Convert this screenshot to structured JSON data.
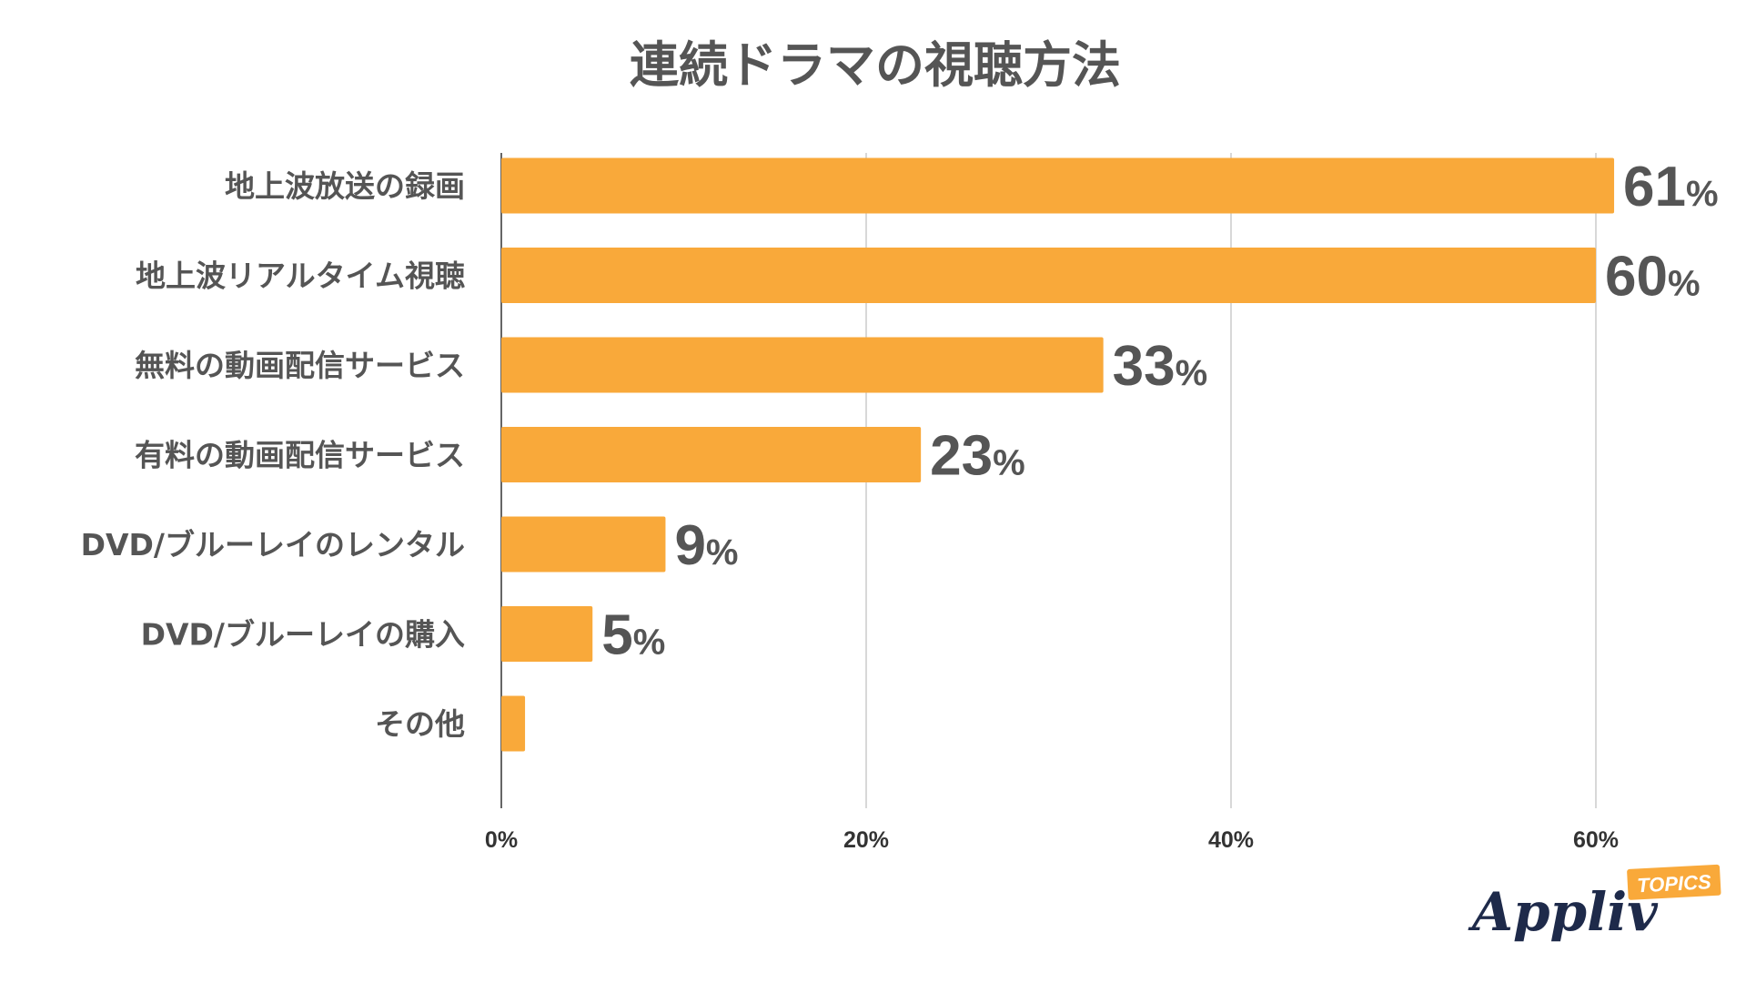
{
  "chart_data": {
    "type": "bar",
    "orientation": "horizontal",
    "title": "連続ドラマの視聴方法",
    "categories": [
      "地上波放送の録画",
      "地上波リアルタイム視聴",
      "無料の動画配信サービス",
      "有料の動画配信サービス",
      "DVD/ブルーレイのレンタル",
      "DVD/ブルーレイの購入",
      "その他"
    ],
    "values": [
      61,
      60,
      33,
      23,
      9,
      5,
      1.3
    ],
    "data_labels": [
      "61",
      "60",
      "33",
      "23",
      "9",
      "5",
      ""
    ],
    "data_label_unit": "%",
    "xlim": [
      0,
      66
    ],
    "x_ticks": [
      0,
      20,
      40,
      60
    ],
    "x_tick_labels": [
      "0%",
      "20%",
      "40%",
      "60%"
    ],
    "grid": true,
    "bar_color": "#f9a93a"
  },
  "logo": {
    "text": "Appliv",
    "badge": "TOPICS",
    "badge_color": "#f9a93a"
  }
}
